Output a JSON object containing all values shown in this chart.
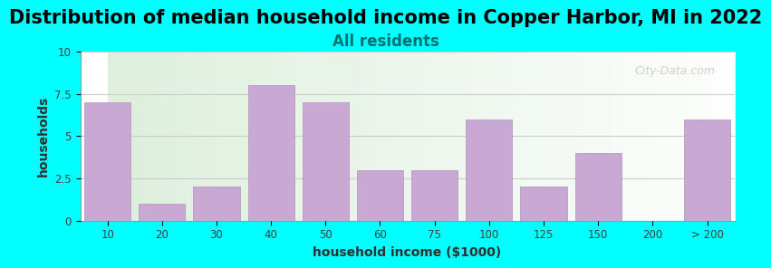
{
  "title": "Distribution of median household income in Copper Harbor, MI in 2022",
  "subtitle": "All residents",
  "xlabel": "household income ($1000)",
  "ylabel": "households",
  "bar_labels": [
    "10",
    "20",
    "30",
    "40",
    "50",
    "60",
    "75",
    "100",
    "125",
    "150",
    "200",
    "> 200"
  ],
  "bar_heights": [
    7,
    1,
    2,
    8,
    7,
    3,
    3,
    6,
    2,
    4,
    0,
    6
  ],
  "bar_color": "#C9A8D4",
  "bar_edge_color": "#B090C0",
  "background_color": "#00FFFF",
  "plot_bg_start": "#D8EDD8",
  "plot_bg_end": "#FFFFFF",
  "ylim": [
    0,
    10
  ],
  "yticks": [
    0,
    2.5,
    5,
    7.5,
    10
  ],
  "title_fontsize": 15,
  "subtitle_fontsize": 12,
  "subtitle_color": "#007070",
  "title_color": "#000000",
  "watermark": "City-Data.com",
  "grid_color": "#CCCCCC"
}
